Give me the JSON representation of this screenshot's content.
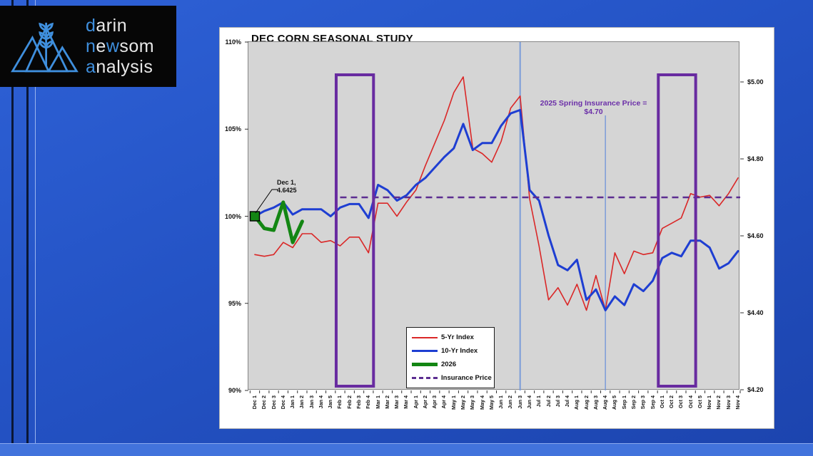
{
  "logo": {
    "icon": "mountains-wheat-icon",
    "accent_color": "#3f8fdd",
    "lines": [
      [
        {
          "t": "d",
          "accent": true
        },
        {
          "t": "arin",
          "accent": false
        }
      ],
      [
        {
          "t": "n",
          "accent": true
        },
        {
          "t": "e",
          "accent": false
        },
        {
          "t": "w",
          "accent": true
        },
        {
          "t": "som",
          "accent": false
        }
      ],
      [
        {
          "t": "a",
          "accent": true
        },
        {
          "t": "nalysis",
          "accent": false
        }
      ]
    ]
  },
  "chart_data": {
    "type": "line",
    "title": "DEC CORN SEASONAL STUDY",
    "plot_background": "#d5d5d5",
    "x_categories": [
      "Dec 1",
      "Dec 2",
      "Dec 3",
      "Dec 4",
      "Jan 1",
      "Jan 2",
      "Jan 3",
      "Jan 4",
      "Jan 5",
      "Feb 1",
      "Feb 2",
      "Feb 3",
      "Feb 4",
      "Mar 1",
      "Mar 2",
      "Mar 3",
      "Mar 4",
      "Apr 1",
      "Apr 2",
      "Apr 3",
      "Apr 4",
      "May 1",
      "May 2",
      "May 3",
      "May 4",
      "May 5",
      "Jun 1",
      "Jun 2",
      "Jun 3",
      "Jun 4",
      "Jul 1",
      "Jul 2",
      "Jul 3",
      "Jul 4",
      "Aug 1",
      "Aug 2",
      "Aug 3",
      "Aug 4",
      "Aug 5",
      "Sep 1",
      "Sep 2",
      "Sep 3",
      "Sep 4",
      "Oct 1",
      "Oct 2",
      "Oct 3",
      "Oct 4",
      "Oct 5",
      "Nov 1",
      "Nov 2",
      "Nov 3",
      "Nov 4"
    ],
    "left_axis": {
      "unit": "percent",
      "min": 90,
      "max": 110,
      "ticks": [
        {
          "label": "110%",
          "value": 110
        },
        {
          "label": "105%",
          "value": 105
        },
        {
          "label": "100%",
          "value": 100
        },
        {
          "label": "95%",
          "value": 95
        },
        {
          "label": "90%",
          "value": 90
        }
      ]
    },
    "right_axis": {
      "unit": "dollars",
      "bottom_value": 4.2,
      "step": 0.2,
      "ticks": [
        {
          "label": "$5.00",
          "value": 5.0
        },
        {
          "label": "$4.80",
          "value": 4.8
        },
        {
          "label": "$4.60",
          "value": 4.6
        },
        {
          "label": "$4.40",
          "value": 4.4
        },
        {
          "label": "$4.20",
          "value": 4.2
        }
      ]
    },
    "series": [
      {
        "name": "5-Yr Index",
        "color": "#da2727",
        "width": 1.6,
        "style": "solid",
        "values": [
          97.8,
          97.7,
          97.8,
          98.5,
          98.2,
          99.0,
          99.0,
          98.5,
          98.6,
          98.3,
          98.8,
          98.8,
          97.9,
          100.75,
          100.75,
          100.0,
          100.8,
          101.5,
          102.9,
          104.2,
          105.5,
          107.1,
          108.0,
          103.9,
          103.6,
          103.1,
          104.3,
          106.2,
          106.9,
          101.0,
          98.3,
          95.2,
          95.9,
          94.9,
          96.1,
          94.6,
          96.6,
          94.6,
          97.9,
          96.7,
          98.0,
          97.8,
          97.9,
          99.3,
          99.6,
          99.9,
          101.3,
          101.1,
          101.2,
          100.6,
          101.3,
          102.2
        ]
      },
      {
        "name": "10-Yr Index",
        "color": "#1e3ed2",
        "width": 3,
        "style": "solid",
        "values": [
          100.0,
          100.3,
          100.5,
          100.8,
          100.1,
          100.4,
          100.4,
          100.4,
          100.0,
          100.5,
          100.7,
          100.7,
          99.9,
          101.8,
          101.5,
          100.9,
          101.2,
          101.8,
          102.2,
          102.8,
          103.4,
          103.9,
          105.3,
          103.8,
          104.2,
          104.2,
          105.2,
          105.9,
          106.1,
          101.5,
          100.9,
          98.9,
          97.2,
          96.9,
          97.5,
          95.2,
          95.8,
          94.6,
          95.4,
          94.9,
          96.1,
          95.7,
          96.3,
          97.6,
          97.9,
          97.7,
          98.6,
          98.6,
          98.2,
          97.0,
          97.3,
          98.0
        ]
      },
      {
        "name": "2026",
        "color": "#138613",
        "width": 5,
        "style": "solid",
        "marker": "square",
        "values": [
          100.0,
          99.3,
          99.2,
          100.8,
          98.5,
          99.7
        ]
      },
      {
        "name": "Insurance Price",
        "color": "#5c2d91",
        "width": 2.4,
        "style": "dashed",
        "right_axis_value": 4.7,
        "starts_at": "Feb 1"
      }
    ],
    "annotations": {
      "insurance_note": "2025 Spring Insurance Price = $4.70",
      "dec1_line1": "Dec 1,",
      "dec1_line2": "4.6425"
    },
    "highlight_boxes": [
      {
        "from": "Feb 1",
        "to": "Feb 4",
        "color": "#682ba0"
      },
      {
        "from": "Oct 1",
        "to": "Oct 4",
        "color": "#682ba0"
      }
    ],
    "reference_vlines": [
      {
        "at": "Jun 3",
        "span": "full",
        "color": "#7b9cd9"
      },
      {
        "at": "Aug 4",
        "span": "partial",
        "color": "#7b9cd9"
      }
    ],
    "legend_position": "bottom-center"
  }
}
